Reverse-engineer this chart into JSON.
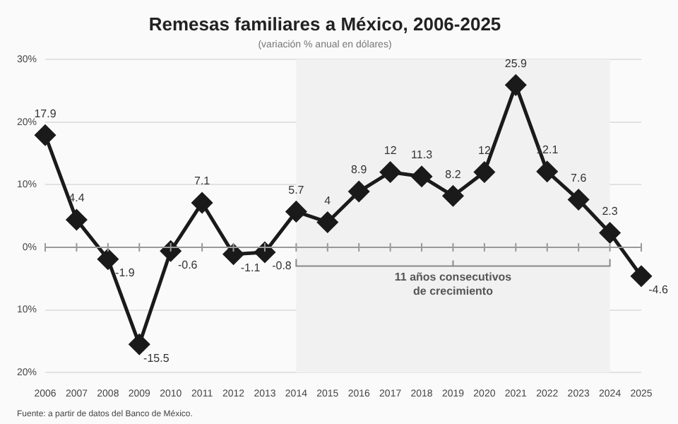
{
  "chart_data": {
    "type": "line",
    "title": "Remesas familiares a México, 2006-2025",
    "subtitle": "(variación % anual en dólares)",
    "categories": [
      "2006",
      "2007",
      "2008",
      "2009",
      "2010",
      "2011",
      "2012",
      "2013",
      "2014",
      "2015",
      "2016",
      "2017",
      "2018",
      "2019",
      "2020",
      "2021",
      "2022",
      "2023",
      "2024",
      "2025"
    ],
    "series": [
      {
        "color": "#1a1a1a",
        "values": [
          17.9,
          4.4,
          -1.9,
          -15.5,
          -0.6,
          7.1,
          -1.1,
          -0.8,
          5.7,
          4,
          8.9,
          12,
          11.3,
          8.2,
          12,
          25.9,
          12.1,
          7.6,
          2.3,
          -4.6
        ]
      }
    ],
    "ylim": [
      -20,
      30
    ],
    "yticks": [
      {
        "value": -20,
        "label": "20%"
      },
      {
        "value": -10,
        "label": "10%"
      },
      {
        "value": 0,
        "label": "0%"
      },
      {
        "value": 10,
        "label": "10%"
      },
      {
        "value": 20,
        "label": "20%"
      },
      {
        "value": 30,
        "label": "30%"
      }
    ],
    "grid": "y",
    "legend": false,
    "marker": "diamond",
    "line_style": "solid",
    "data_labels": true,
    "bands": [
      {
        "axis": "x",
        "from": "2014",
        "to": "2024",
        "label": "11 años consecutivos de crecimiento",
        "color": "#f1f1f1"
      }
    ],
    "annotations": [
      "Fuente: a partir de datos del Banco de México."
    ]
  }
}
